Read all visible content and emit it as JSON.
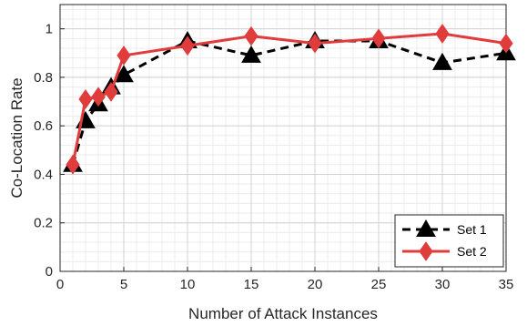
{
  "chart_data": {
    "type": "line",
    "title": "",
    "xlabel": "Number of Attack Instances",
    "ylabel": "Co-Location Rate",
    "xlim": [
      0,
      35
    ],
    "ylim": [
      0,
      1.1
    ],
    "xticks": [
      0,
      5,
      10,
      15,
      20,
      25,
      30,
      35
    ],
    "yticks": [
      0,
      0.2,
      0.4,
      0.6,
      0.8,
      1
    ],
    "x_tick_labels": [
      "0",
      "5",
      "10",
      "15",
      "20",
      "25",
      "30",
      "35"
    ],
    "y_tick_labels": [
      "0",
      "0.2",
      "0.4",
      "0.6",
      "0.8",
      "1"
    ],
    "grid": true,
    "minor_grid": true,
    "legend_position": "bottom-right",
    "series": [
      {
        "name": "Set 1",
        "color": "#000000",
        "line_style": "dashed",
        "marker": "triangle",
        "x": [
          1,
          2,
          3,
          4,
          5,
          10,
          15,
          20,
          25,
          30,
          35
        ],
        "y": [
          0.44,
          0.62,
          0.69,
          0.76,
          0.81,
          0.95,
          0.89,
          0.95,
          0.95,
          0.86,
          0.9
        ]
      },
      {
        "name": "Set 2",
        "color": "#e03c3c",
        "line_style": "solid",
        "marker": "diamond",
        "x": [
          1,
          2,
          3,
          4,
          5,
          10,
          15,
          20,
          25,
          30,
          35
        ],
        "y": [
          0.44,
          0.71,
          0.72,
          0.74,
          0.89,
          0.93,
          0.97,
          0.94,
          0.96,
          0.98,
          0.94
        ]
      }
    ]
  }
}
